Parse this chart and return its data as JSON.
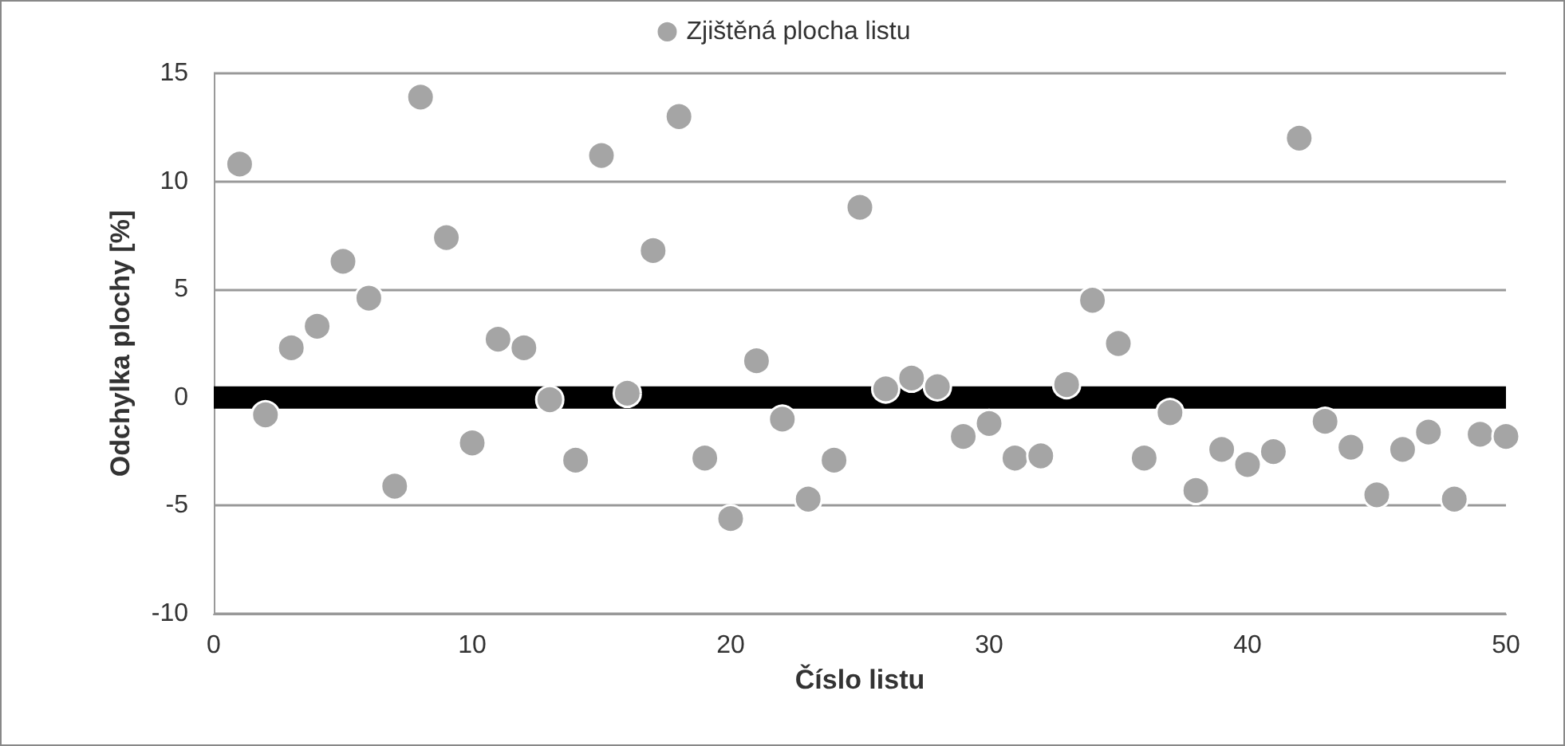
{
  "chart_data": {
    "type": "scatter",
    "xlabel": "Číslo listu",
    "ylabel": "Odchylka plochy [%]",
    "x": [
      1,
      2,
      3,
      4,
      5,
      6,
      7,
      8,
      9,
      10,
      11,
      12,
      13,
      14,
      15,
      16,
      17,
      18,
      19,
      20,
      21,
      22,
      23,
      24,
      25,
      26,
      27,
      28,
      29,
      30,
      31,
      32,
      33,
      34,
      35,
      36,
      37,
      38,
      39,
      40,
      41,
      42,
      43,
      44,
      45,
      46,
      47,
      48,
      49,
      50
    ],
    "series": [
      {
        "name": "Zjištěná plocha listu",
        "color": "#a5a5a5",
        "values": [
          10.8,
          -0.8,
          2.3,
          3.3,
          6.3,
          4.6,
          -4.1,
          13.9,
          7.4,
          -2.1,
          2.7,
          2.3,
          -0.1,
          -2.9,
          11.2,
          0.2,
          6.8,
          13.0,
          -2.8,
          -5.6,
          1.7,
          -1.0,
          -4.7,
          -2.9,
          8.8,
          0.4,
          0.9,
          0.5,
          -1.8,
          -1.2,
          -2.8,
          -2.7,
          0.6,
          4.5,
          2.5,
          -2.8,
          -0.7,
          -4.3,
          -2.4,
          -3.1,
          -2.5,
          12.0,
          -1.1,
          -2.3,
          -4.5,
          -2.4,
          -1.6,
          -4.7,
          -1.7,
          -1.8
        ]
      }
    ],
    "xlim": [
      0,
      50
    ],
    "xticks": [
      0,
      10,
      20,
      30,
      40,
      50
    ],
    "ylim": [
      -10,
      15
    ],
    "yticks": [
      -10,
      -5,
      0,
      5,
      10,
      15
    ],
    "grid": "y",
    "legend": "top",
    "marker": "circle",
    "ref_lines": [
      {
        "axis": "y",
        "value": 0,
        "color": "#000000",
        "line_style": "solid"
      }
    ]
  }
}
